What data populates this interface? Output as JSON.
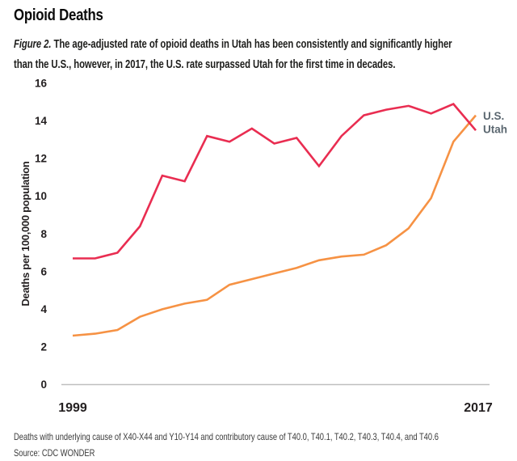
{
  "header": {
    "title": "Opioid Deaths",
    "figure_label": "Figure 2.",
    "caption_line1_rest": " The age-adjusted rate of opioid deaths in Utah has been consistently and significantly higher",
    "caption_line2": "than the U.S., however, in 2017, the U.S. rate surpassed Utah for the first time in decades."
  },
  "footer": {
    "note": "Deaths with underlying cause of X40-X44 and Y10-Y14 and contributory cause of T40.0, T40.1, T40.2, T40.3, T40.4, and T40.6",
    "source": "Source: CDC WONDER"
  },
  "colors": {
    "us_line": "#F69244",
    "utah_line": "#E92D51",
    "legend_text": "#5B6770",
    "axis_line": "#BFBFBF",
    "tick_text": "#231F20"
  },
  "chart_data": {
    "type": "line",
    "title": "Opioid Deaths",
    "xlabel": "",
    "ylabel": "Deaths per 100,000 population",
    "ylim": [
      0,
      16
    ],
    "yticks": [
      0,
      2,
      4,
      6,
      8,
      10,
      12,
      14,
      16
    ],
    "xticks_shown": [
      1999,
      2017
    ],
    "grid": false,
    "legend_position": "right-of-line-ends",
    "x": [
      1999,
      2000,
      2001,
      2002,
      2003,
      2004,
      2005,
      2006,
      2007,
      2008,
      2009,
      2010,
      2011,
      2012,
      2013,
      2014,
      2015,
      2016,
      2017
    ],
    "series": [
      {
        "name": "U.S.",
        "color": "#F69244",
        "values": [
          2.6,
          2.7,
          2.9,
          3.6,
          4.0,
          4.3,
          4.5,
          5.3,
          5.6,
          5.9,
          6.2,
          6.6,
          6.8,
          6.9,
          7.4,
          8.3,
          9.9,
          12.9,
          14.3
        ]
      },
      {
        "name": "Utah",
        "color": "#E92D51",
        "values": [
          6.7,
          6.7,
          7.0,
          8.4,
          11.1,
          10.8,
          13.2,
          12.9,
          13.6,
          12.8,
          13.1,
          11.6,
          13.2,
          14.3,
          14.6,
          14.8,
          14.4,
          14.9,
          13.5
        ]
      }
    ]
  }
}
